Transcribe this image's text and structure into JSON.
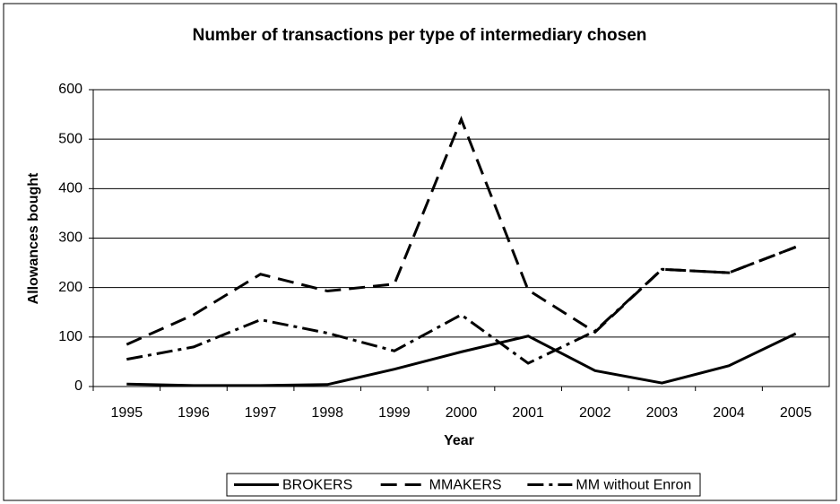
{
  "chart_data": {
    "type": "line",
    "title": "Number of transactions per type of intermediary chosen",
    "x_label": "Year",
    "y_label": "Allowances bought",
    "categories": [
      "1995",
      "1996",
      "1997",
      "1998",
      "1999",
      "2000",
      "2001",
      "2002",
      "2003",
      "2004",
      "2005"
    ],
    "series": [
      {
        "name": "BROKERS",
        "color": "#000000",
        "dash": "solid",
        "values": [
          5,
          2,
          2,
          4,
          35,
          70,
          102,
          32,
          7,
          42,
          107
        ]
      },
      {
        "name": "MMAKERS",
        "color": "#000000",
        "dash": "dash",
        "values": [
          85,
          145,
          227,
          193,
          207,
          540,
          195,
          110,
          237,
          230,
          282
        ]
      },
      {
        "name": "MM without Enron",
        "color": "#000000",
        "dash": "dashdot",
        "values": [
          55,
          80,
          135,
          108,
          72,
          145,
          47,
          112,
          237,
          230,
          282
        ]
      }
    ],
    "ylim": [
      0,
      600
    ],
    "yticks": [
      0,
      100,
      200,
      300,
      400,
      500,
      600
    ],
    "grid": true,
    "legend": "bottom"
  }
}
